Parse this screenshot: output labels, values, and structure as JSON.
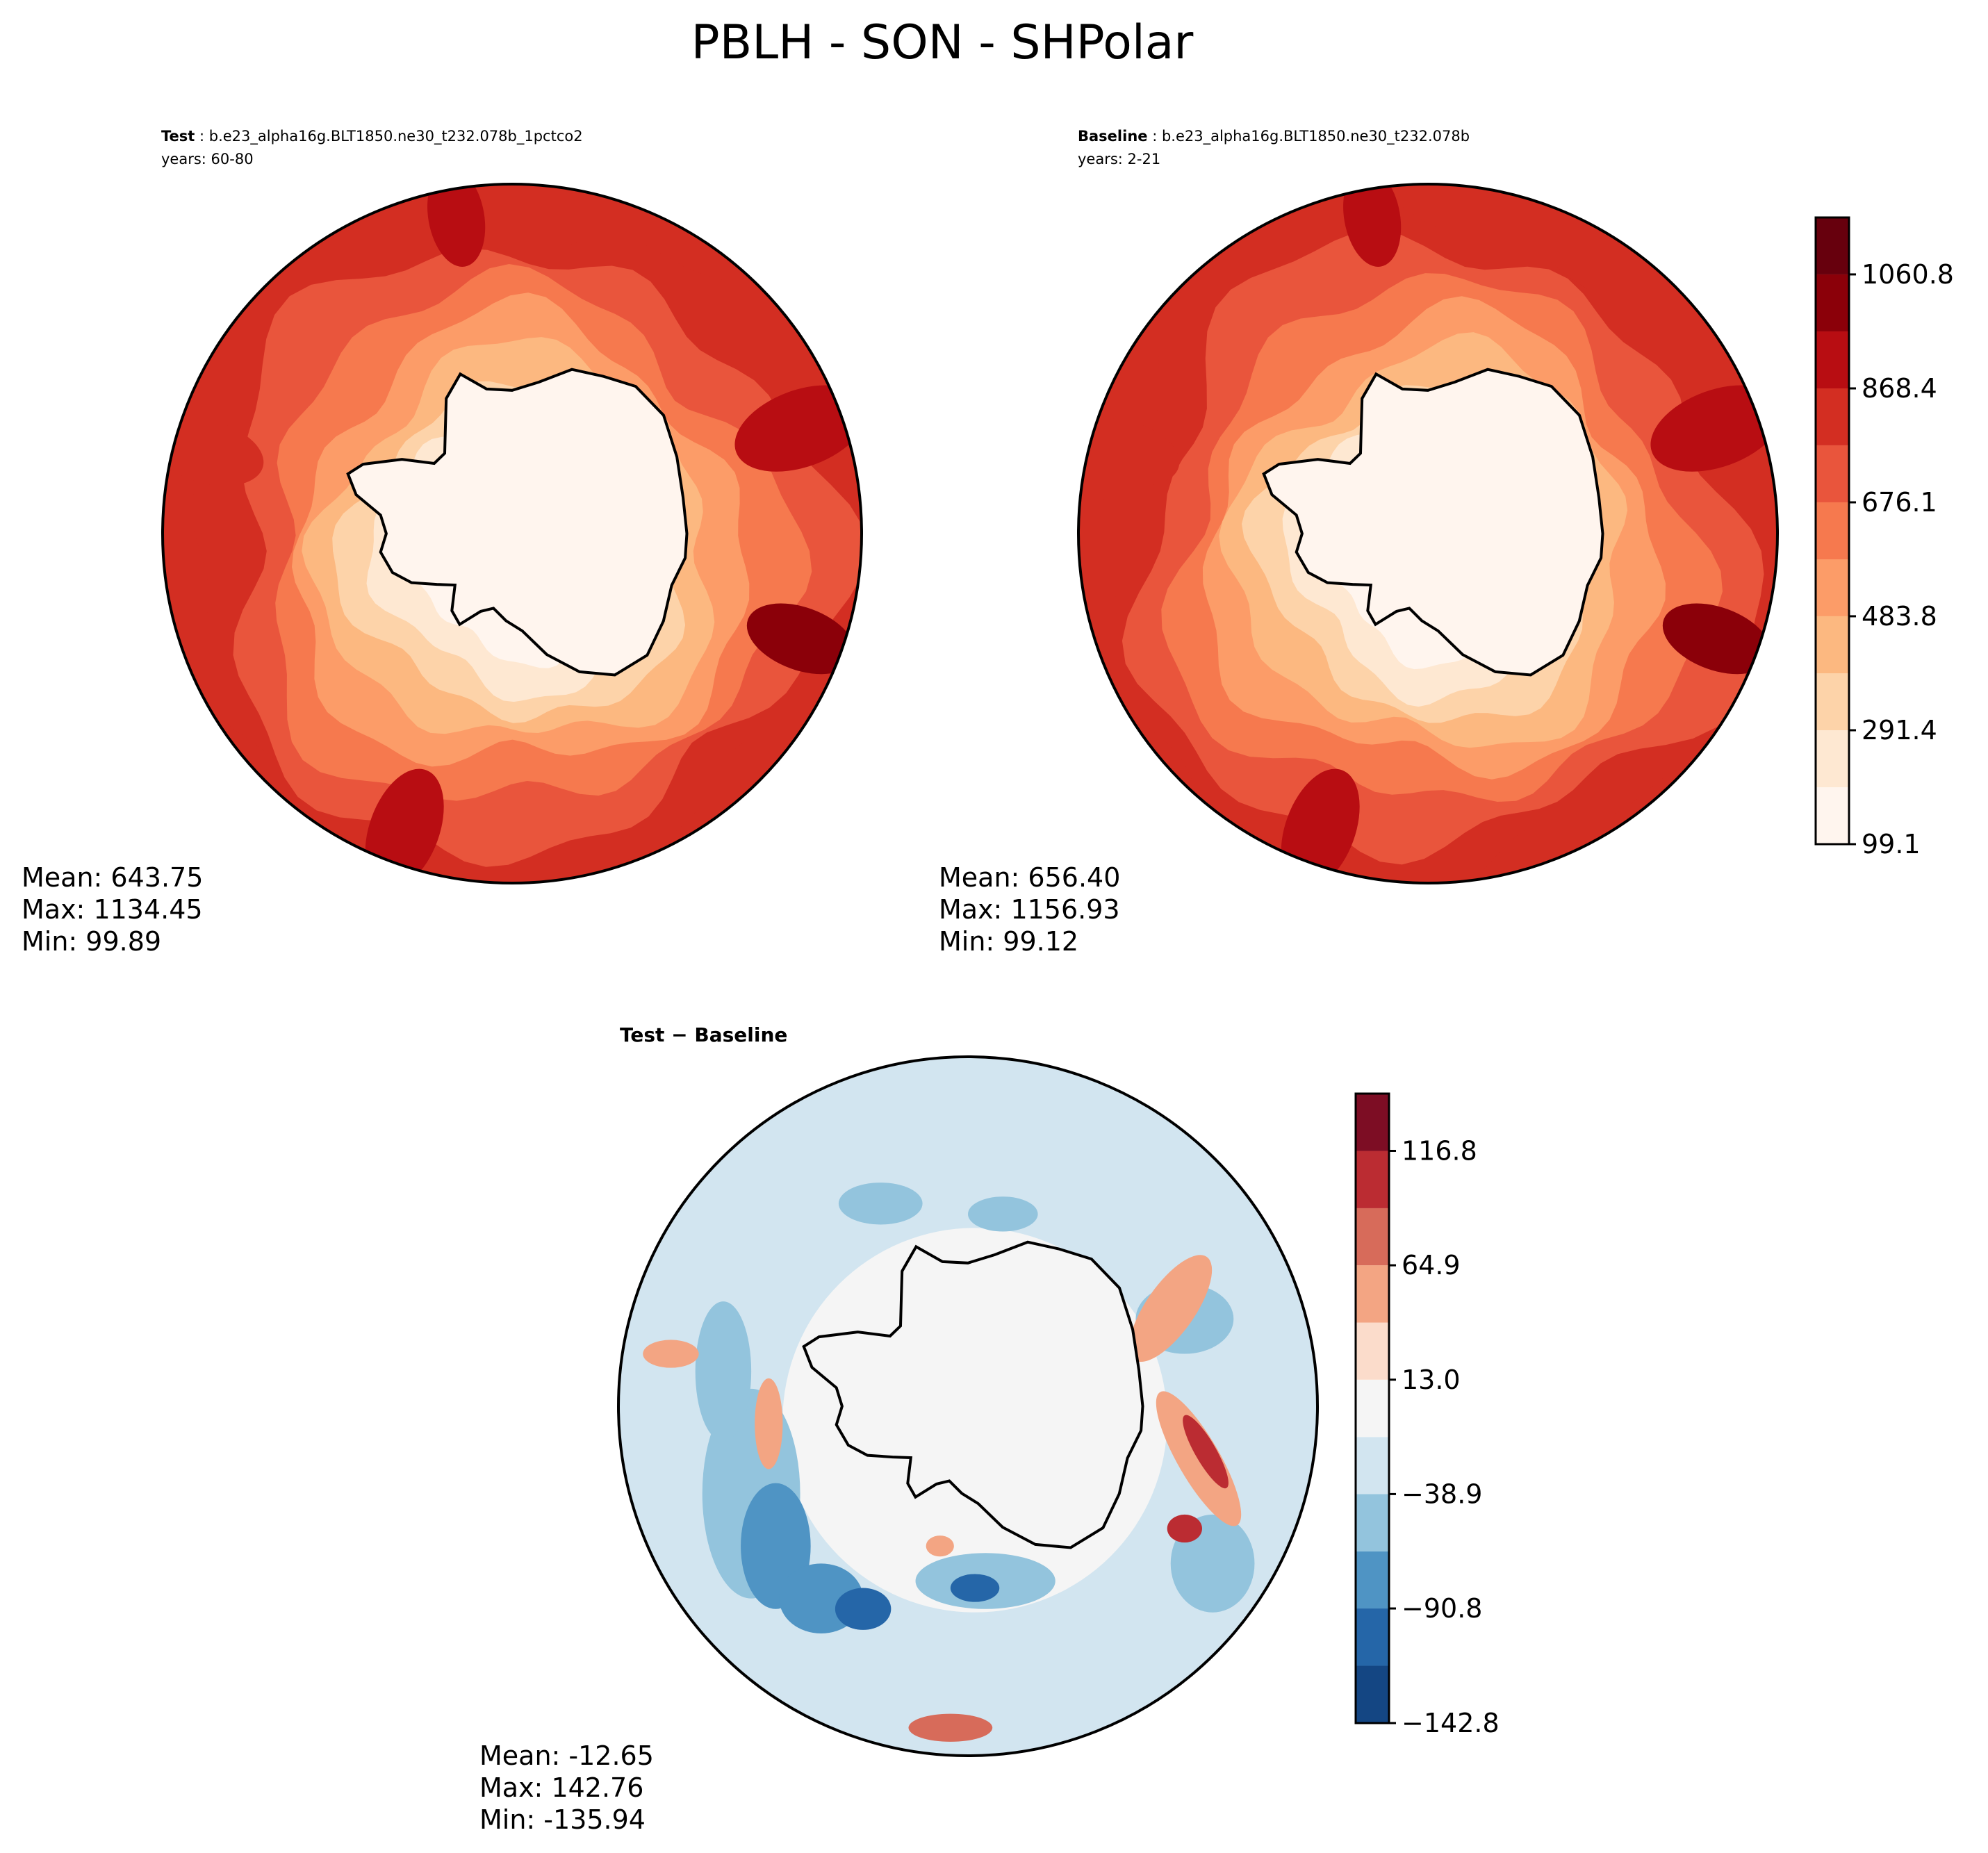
{
  "title": "PBLH - SON - SHPolar",
  "chart_data": [
    {
      "type": "polar-contour-map",
      "panel": "test",
      "label_bold": "Test",
      "label_rest": " : b.e23_alpha16g.BLT1850.ne30_t232.078b_1pctco2",
      "years": "years: 60-80",
      "stats": {
        "mean": "Mean: 643.75",
        "max": "Max: 1134.45",
        "min": "Min: 99.89"
      },
      "levels": [
        99.1,
        195.2,
        291.4,
        387.6,
        483.8,
        579.9,
        676.1,
        772.3,
        868.4,
        964.6,
        1060.8,
        1156.9
      ],
      "center_value": 180,
      "outer_value": 900
    },
    {
      "type": "polar-contour-map",
      "panel": "baseline",
      "label_bold": "Baseline",
      "label_rest": " : b.e23_alpha16g.BLT1850.ne30_t232.078b",
      "years": "years: 2-21",
      "stats": {
        "mean": "Mean: 656.40",
        "max": "Max: 1156.93",
        "min": "Min: 99.12"
      },
      "levels": [
        99.1,
        195.2,
        291.4,
        387.6,
        483.8,
        579.9,
        676.1,
        772.3,
        868.4,
        964.6,
        1060.8,
        1156.9
      ],
      "colorbar_ticks": [
        "99.1",
        "291.4",
        "483.8",
        "676.1",
        "868.4",
        "1060.8"
      ],
      "center_value": 170,
      "outer_value": 930
    },
    {
      "type": "polar-contour-map",
      "panel": "difference",
      "label_bold": "Test − Baseline",
      "stats": {
        "mean": "Mean: -12.65",
        "max": "Max: 142.76",
        "min": "Min: -135.94"
      },
      "levels": [
        -142.8,
        -116.8,
        -90.8,
        -64.9,
        -38.9,
        -13.0,
        13.0,
        38.9,
        64.9,
        90.8,
        116.8,
        142.8
      ],
      "colorbar_ticks": [
        "−142.8",
        "−90.8",
        "−38.9",
        "13.0",
        "64.9",
        "116.8"
      ]
    }
  ],
  "colors": {
    "reds": [
      "#fff5ee",
      "#fee8d2",
      "#fdd3a9",
      "#fcb880",
      "#fc9c68",
      "#f6794e",
      "#e9553c",
      "#d32e22",
      "#b80d12",
      "#8b0009",
      "#67000d"
    ],
    "rdbu": [
      "#144683",
      "#2566a8",
      "#4f94c4",
      "#93c4dd",
      "#d2e5f0",
      "#f5f5f5",
      "#fbdccb",
      "#f3a583",
      "#d76b5a",
      "#bb2c32",
      "#7d0d24"
    ],
    "land": "#fffaf2"
  }
}
